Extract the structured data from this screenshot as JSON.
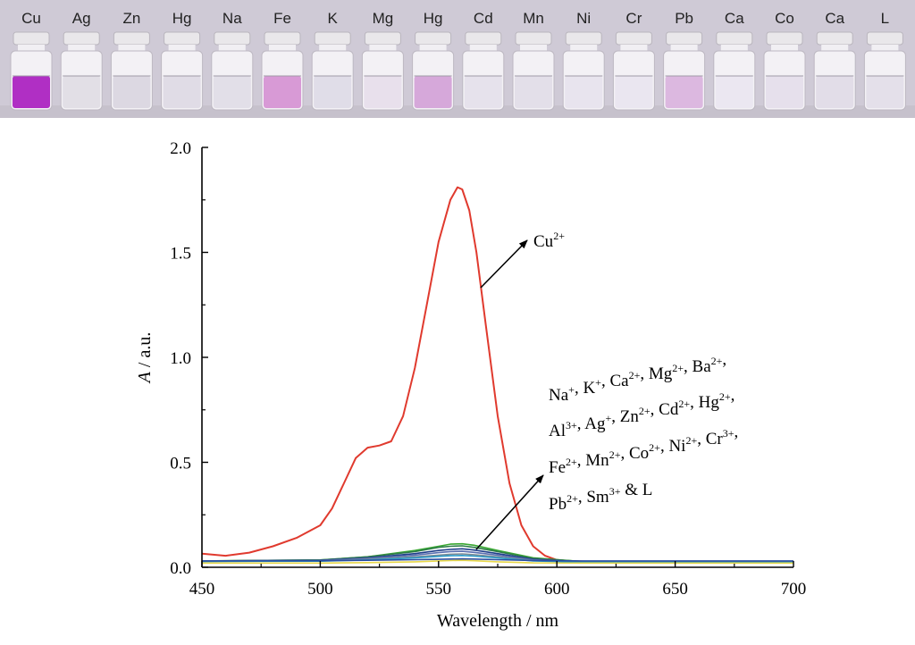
{
  "photo": {
    "vials": [
      {
        "label": "Cu",
        "liquid": "#b02fc4"
      },
      {
        "label": "Ag",
        "liquid": "#e2dfe6"
      },
      {
        "label": "Zn",
        "liquid": "#dcd8e2"
      },
      {
        "label": "Hg",
        "liquid": "#e0dce6"
      },
      {
        "label": "Na",
        "liquid": "#e2dfe8"
      },
      {
        "label": "Fe",
        "liquid": "#d89ad6"
      },
      {
        "label": "K",
        "liquid": "#e0dde8"
      },
      {
        "label": "Mg",
        "liquid": "#e8e0ec"
      },
      {
        "label": "Hg",
        "liquid": "#d6a8da"
      },
      {
        "label": "Cd",
        "liquid": "#e6e2ec"
      },
      {
        "label": "Mn",
        "liquid": "#e3dfe9"
      },
      {
        "label": "Ni",
        "liquid": "#e8e4ee"
      },
      {
        "label": "Cr",
        "liquid": "#eae6f0"
      },
      {
        "label": "Pb",
        "liquid": "#dcb8e0"
      },
      {
        "label": "Ca",
        "liquid": "#ebe7f1"
      },
      {
        "label": "Co",
        "liquid": "#e6e0ec"
      },
      {
        "label": "Ca",
        "liquid": "#e2dde8"
      },
      {
        "label": "L",
        "liquid": "#e4e0ea"
      }
    ],
    "background": "#cfcad6"
  },
  "chart_data": {
    "type": "line",
    "xlabel": "Wavelength / nm",
    "ylabel_italic": "A",
    "ylabel_rest": " / a.u.",
    "xlim": [
      450,
      700
    ],
    "ylim": [
      0,
      2.0
    ],
    "xticks": [
      "450",
      "500",
      "550",
      "600",
      "650",
      "700"
    ],
    "yticks": [
      "0.0",
      "0.5",
      "1.0",
      "1.5",
      "2.0"
    ],
    "series": [
      {
        "name": "Cu2+",
        "color": "#e03a2e",
        "x": [
          450,
          460,
          470,
          480,
          490,
          500,
          505,
          510,
          515,
          520,
          525,
          530,
          535,
          540,
          545,
          550,
          555,
          558,
          560,
          563,
          566,
          570,
          575,
          580,
          585,
          590,
          595,
          600,
          605,
          610,
          620,
          650,
          700
        ],
        "y": [
          0.065,
          0.055,
          0.07,
          0.1,
          0.14,
          0.2,
          0.28,
          0.4,
          0.52,
          0.57,
          0.58,
          0.6,
          0.72,
          0.95,
          1.25,
          1.55,
          1.75,
          1.81,
          1.8,
          1.7,
          1.5,
          1.15,
          0.72,
          0.4,
          0.2,
          0.1,
          0.055,
          0.035,
          0.03,
          0.028,
          0.025,
          0.025,
          0.025
        ]
      },
      {
        "color": "#3aa832",
        "x": [
          450,
          500,
          520,
          540,
          550,
          555,
          560,
          565,
          575,
          590,
          610,
          700
        ],
        "y": [
          0.03,
          0.035,
          0.05,
          0.08,
          0.1,
          0.11,
          0.112,
          0.105,
          0.08,
          0.045,
          0.028,
          0.025
        ]
      },
      {
        "color": "#2f7d4a",
        "x": [
          450,
          500,
          520,
          540,
          550,
          555,
          560,
          565,
          575,
          590,
          610,
          700
        ],
        "y": [
          0.03,
          0.035,
          0.05,
          0.075,
          0.095,
          0.1,
          0.102,
          0.095,
          0.075,
          0.042,
          0.028,
          0.025
        ]
      },
      {
        "color": "#1f3f8a",
        "x": [
          450,
          500,
          520,
          540,
          550,
          555,
          560,
          565,
          575,
          590,
          610,
          700
        ],
        "y": [
          0.03,
          0.033,
          0.045,
          0.065,
          0.08,
          0.085,
          0.088,
          0.082,
          0.065,
          0.038,
          0.027,
          0.025
        ]
      },
      {
        "color": "#5a6fb0",
        "x": [
          450,
          500,
          520,
          540,
          550,
          555,
          560,
          565,
          575,
          590,
          610,
          700
        ],
        "y": [
          0.03,
          0.032,
          0.042,
          0.058,
          0.07,
          0.075,
          0.076,
          0.071,
          0.058,
          0.035,
          0.026,
          0.025
        ]
      },
      {
        "color": "#7a8a95",
        "x": [
          450,
          500,
          520,
          540,
          550,
          555,
          560,
          565,
          575,
          590,
          610,
          700
        ],
        "y": [
          0.028,
          0.03,
          0.038,
          0.05,
          0.058,
          0.062,
          0.064,
          0.06,
          0.05,
          0.032,
          0.025,
          0.024
        ]
      },
      {
        "color": "#2a9ac8",
        "x": [
          450,
          500,
          520,
          540,
          550,
          555,
          560,
          565,
          575,
          590,
          610,
          700
        ],
        "y": [
          0.028,
          0.029,
          0.035,
          0.045,
          0.052,
          0.055,
          0.056,
          0.053,
          0.045,
          0.03,
          0.025,
          0.024
        ]
      },
      {
        "color": "#e8d84a",
        "x": [
          450,
          500,
          520,
          540,
          550,
          555,
          560,
          565,
          575,
          590,
          610,
          700
        ],
        "y": [
          0.02,
          0.02,
          0.022,
          0.026,
          0.03,
          0.032,
          0.033,
          0.031,
          0.026,
          0.021,
          0.02,
          0.02
        ]
      },
      {
        "color": "#2b4da0",
        "x": [
          450,
          500,
          520,
          540,
          550,
          555,
          560,
          565,
          575,
          590,
          610,
          700
        ],
        "y": [
          0.03,
          0.031,
          0.033,
          0.036,
          0.038,
          0.039,
          0.04,
          0.039,
          0.036,
          0.032,
          0.03,
          0.03
        ]
      }
    ],
    "annotations": {
      "cu": {
        "base": "Cu",
        "sup": "2+"
      },
      "others": [
        [
          {
            "base": "Na",
            "sup": "+"
          },
          {
            "base": ", K",
            "sup": "+"
          },
          {
            "base": ", Ca",
            "sup": "2+"
          },
          {
            "base": ", Mg",
            "sup": "2+"
          },
          {
            "base": ", Ba",
            "sup": "2+"
          },
          {
            "base": ",",
            "sup": ""
          }
        ],
        [
          {
            "base": "Al",
            "sup": "3+"
          },
          {
            "base": ", Ag",
            "sup": "+"
          },
          {
            "base": ", Zn",
            "sup": "2+"
          },
          {
            "base": ", Cd",
            "sup": "2+"
          },
          {
            "base": ", Hg",
            "sup": "2+"
          },
          {
            "base": ",",
            "sup": ""
          }
        ],
        [
          {
            "base": "Fe",
            "sup": "2+"
          },
          {
            "base": ", Mn",
            "sup": "2+"
          },
          {
            "base": ", Co",
            "sup": "2+"
          },
          {
            "base": ", Ni",
            "sup": "2+"
          },
          {
            "base": ", Cr",
            "sup": "3+"
          },
          {
            "base": ",",
            "sup": ""
          }
        ],
        [
          {
            "base": "Pb",
            "sup": "2+"
          },
          {
            "base": ", Sm",
            "sup": "3+"
          },
          {
            "base": " & L",
            "sup": ""
          }
        ]
      ]
    }
  }
}
